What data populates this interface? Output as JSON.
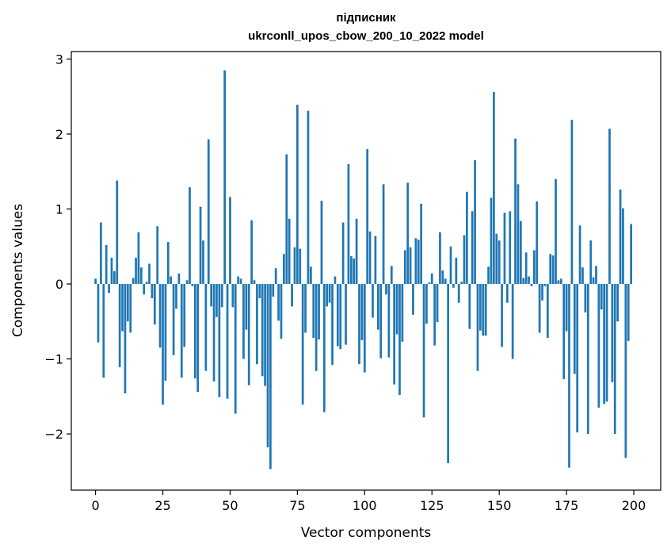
{
  "chart_data": {
    "type": "bar",
    "title_line1": "підписник",
    "title_line2": "ukrconll_upos_cbow_200_10_2022 model",
    "xlabel": "Vector components",
    "ylabel": "Components values",
    "xlim": [
      -9,
      210
    ],
    "ylim": [
      -2.75,
      3.1
    ],
    "xticks": [
      0,
      25,
      50,
      75,
      100,
      125,
      150,
      175,
      200
    ],
    "xtick_labels": [
      "0",
      "25",
      "50",
      "75",
      "100",
      "125",
      "150",
      "175",
      "200"
    ],
    "yticks": [
      -2,
      -1,
      0,
      1,
      2,
      3
    ],
    "ytick_labels": [
      "−2",
      "−1",
      "0",
      "1",
      "2",
      "3"
    ],
    "bar_color": "#1f77b4",
    "x": [
      0,
      1,
      2,
      3,
      4,
      5,
      6,
      7,
      8,
      9,
      10,
      11,
      12,
      13,
      14,
      15,
      16,
      17,
      18,
      19,
      20,
      21,
      22,
      23,
      24,
      25,
      26,
      27,
      28,
      29,
      30,
      31,
      32,
      33,
      34,
      35,
      36,
      37,
      38,
      39,
      40,
      41,
      42,
      43,
      44,
      45,
      46,
      47,
      48,
      49,
      50,
      51,
      52,
      53,
      54,
      55,
      56,
      57,
      58,
      59,
      60,
      61,
      62,
      63,
      64,
      65,
      66,
      67,
      68,
      69,
      70,
      71,
      72,
      73,
      74,
      75,
      76,
      77,
      78,
      79,
      80,
      81,
      82,
      83,
      84,
      85,
      86,
      87,
      88,
      89,
      90,
      91,
      92,
      93,
      94,
      95,
      96,
      97,
      98,
      99,
      100,
      101,
      102,
      103,
      104,
      105,
      106,
      107,
      108,
      109,
      110,
      111,
      112,
      113,
      114,
      115,
      116,
      117,
      118,
      119,
      120,
      121,
      122,
      123,
      124,
      125,
      126,
      127,
      128,
      129,
      130,
      131,
      132,
      133,
      134,
      135,
      136,
      137,
      138,
      139,
      140,
      141,
      142,
      143,
      144,
      145,
      146,
      147,
      148,
      149,
      150,
      151,
      152,
      153,
      154,
      155,
      156,
      157,
      158,
      159,
      160,
      161,
      162,
      163,
      164,
      165,
      166,
      167,
      168,
      169,
      170,
      171,
      172,
      173,
      174,
      175,
      176,
      177,
      178,
      179,
      180,
      181,
      182,
      183,
      184,
      185,
      186,
      187,
      188,
      189,
      190,
      191,
      192,
      193,
      194,
      195,
      196,
      197,
      198,
      199
    ],
    "values": [
      0.07,
      -0.78,
      0.82,
      -1.25,
      0.52,
      -0.12,
      0.35,
      0.17,
      1.38,
      -1.11,
      -0.63,
      -1.46,
      -0.5,
      -0.65,
      0.08,
      0.35,
      0.69,
      0.22,
      -0.14,
      0.03,
      0.27,
      -0.19,
      -0.54,
      0.77,
      -0.85,
      -1.61,
      -1.29,
      0.56,
      0.1,
      -0.95,
      -0.33,
      0.14,
      -1.25,
      -0.84,
      0.05,
      1.29,
      -0.03,
      -1.26,
      -1.44,
      1.03,
      0.58,
      -1.16,
      1.93,
      -0.3,
      -1.3,
      -0.44,
      -1.51,
      -0.31,
      2.85,
      -1.53,
      1.16,
      -0.31,
      -1.73,
      0.1,
      0.07,
      -1.0,
      -0.61,
      -1.35,
      0.85,
      0.05,
      -1.07,
      -0.19,
      -1.23,
      -1.36,
      -2.18,
      -2.47,
      -0.17,
      0.21,
      -0.49,
      -0.73,
      0.4,
      1.73,
      0.87,
      -0.3,
      0.49,
      2.39,
      0.47,
      -1.61,
      -0.65,
      2.31,
      0.23,
      -0.72,
      -1.16,
      -0.74,
      1.11,
      -1.71,
      -0.3,
      -0.25,
      -1.08,
      0.1,
      -0.83,
      -0.87,
      0.82,
      -0.81,
      1.6,
      0.37,
      0.34,
      0.87,
      -1.07,
      -0.75,
      -1.18,
      1.8,
      0.7,
      -0.45,
      0.64,
      -0.61,
      -0.99,
      1.33,
      -0.14,
      -0.98,
      0.24,
      -1.34,
      -0.67,
      -1.48,
      -0.77,
      0.45,
      1.35,
      0.49,
      -0.41,
      0.61,
      0.59,
      1.07,
      -1.78,
      -0.53,
      0.02,
      0.14,
      -0.82,
      -0.51,
      0.69,
      0.18,
      0.07,
      -2.39,
      0.5,
      -0.05,
      0.35,
      -0.25,
      0.03,
      0.65,
      1.23,
      -0.6,
      0.97,
      1.65,
      -1.16,
      -0.62,
      -0.69,
      -0.69,
      0.23,
      1.15,
      2.56,
      0.67,
      0.58,
      -0.84,
      0.95,
      -0.25,
      0.97,
      -1.0,
      1.94,
      1.33,
      0.84,
      0.08,
      0.42,
      0.1,
      -0.03,
      0.45,
      1.1,
      -0.65,
      -0.22,
      -0.03,
      -0.72,
      0.4,
      0.38,
      1.4,
      0.05,
      0.07,
      -1.27,
      -0.63,
      -2.45,
      2.19,
      -1.2,
      -1.98,
      0.78,
      0.22,
      -0.38,
      -2.0,
      0.58,
      0.09,
      0.24,
      -1.65,
      -0.34,
      -1.6,
      -1.57,
      2.07,
      -1.31,
      -2.0,
      -0.5,
      1.26,
      1.01,
      -2.32,
      -0.76,
      0.8
    ]
  }
}
